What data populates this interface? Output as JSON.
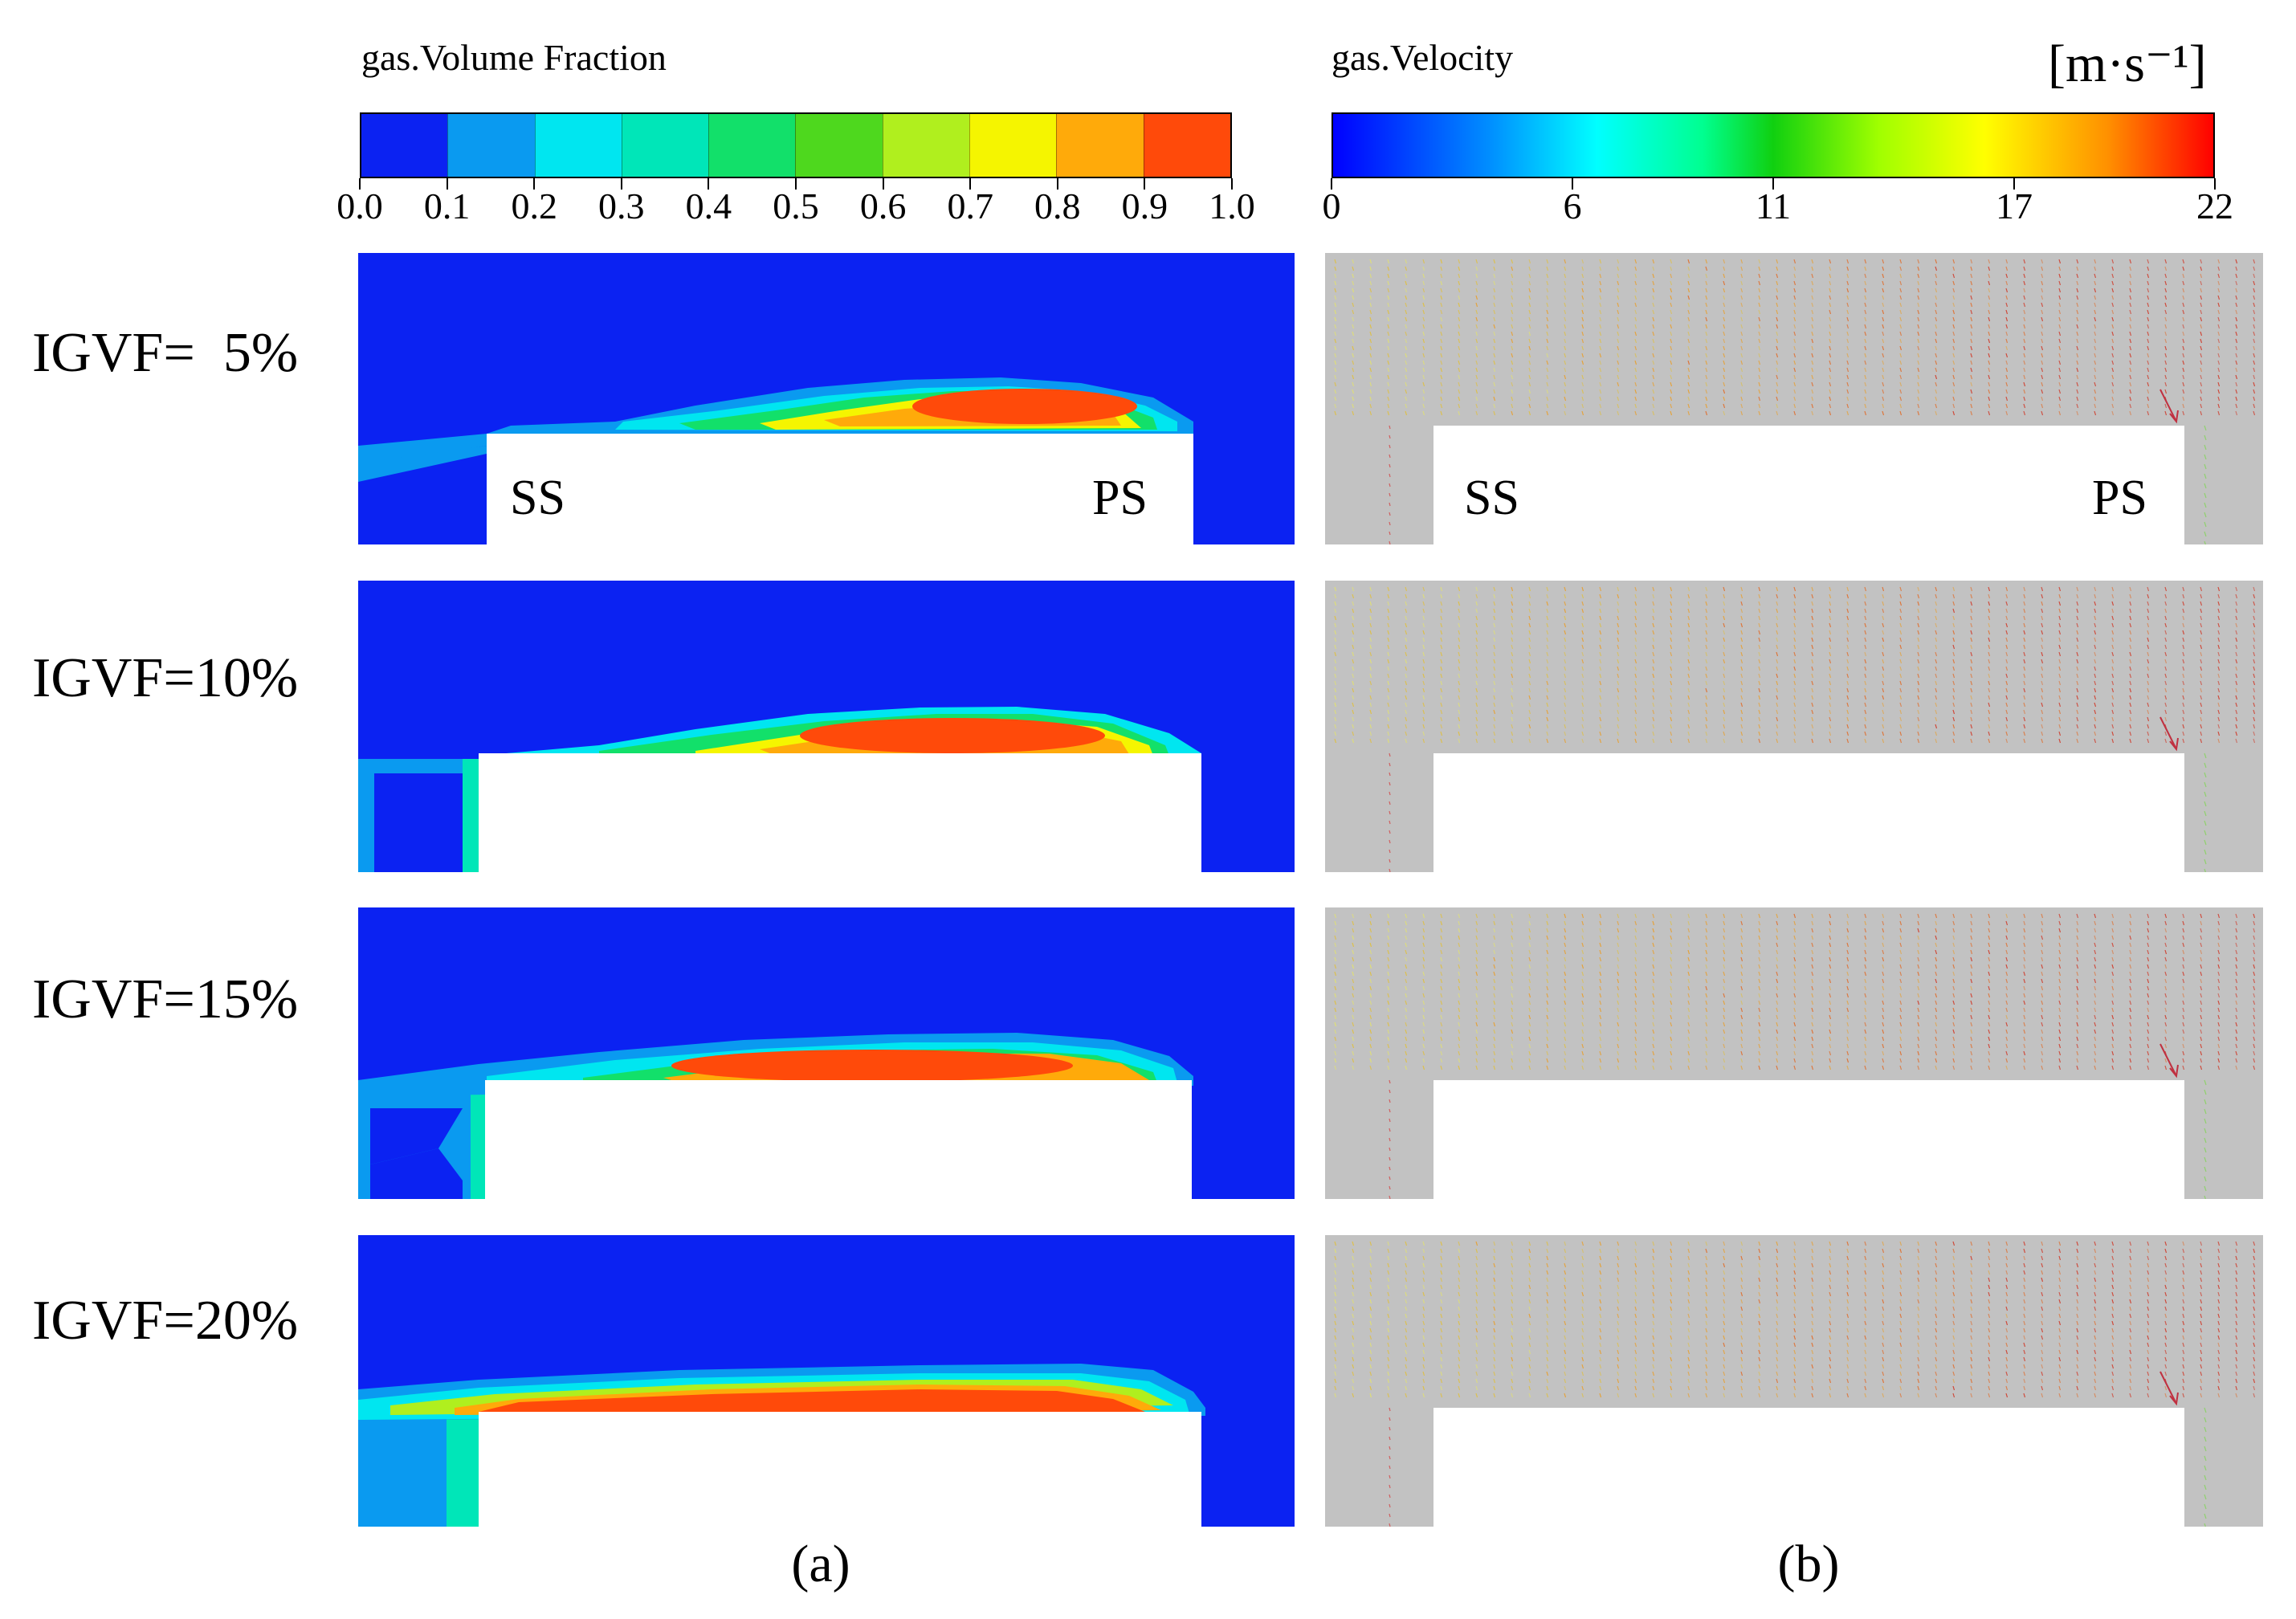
{
  "left_colorbar": {
    "title": "gas.Volume Fraction",
    "ticks": [
      "0.0",
      "0.1",
      "0.2",
      "0.3",
      "0.4",
      "0.5",
      "0.6",
      "0.7",
      "0.8",
      "0.9",
      "1.0"
    ],
    "colors": [
      "#0b22f2",
      "#0a9af0",
      "#00e6f0",
      "#00e6b8",
      "#12e06a",
      "#4ed81e",
      "#b0ef1e",
      "#f5f500",
      "#ffaa0a",
      "#ff4a0a"
    ]
  },
  "right_colorbar": {
    "title": "gas.Velocity",
    "unit": "[m·s⁻¹]",
    "ticks": [
      "0",
      "6",
      "11",
      "17",
      "22"
    ]
  },
  "rows": [
    {
      "label": "IGVF=  5%",
      "ss": "SS",
      "ps": "PS"
    },
    {
      "label": "IGVF=10%",
      "ss": "",
      "ps": ""
    },
    {
      "label": "IGVF=15%",
      "ss": "",
      "ps": ""
    },
    {
      "label": "IGVF=20%",
      "ss": "",
      "ps": ""
    }
  ],
  "captions": {
    "a": "(a)",
    "b": "(b)"
  },
  "colors": {
    "liquid_blue": "#0b22f2",
    "vector_background": "#c2c2c2",
    "blade_white": "#ffffff"
  }
}
